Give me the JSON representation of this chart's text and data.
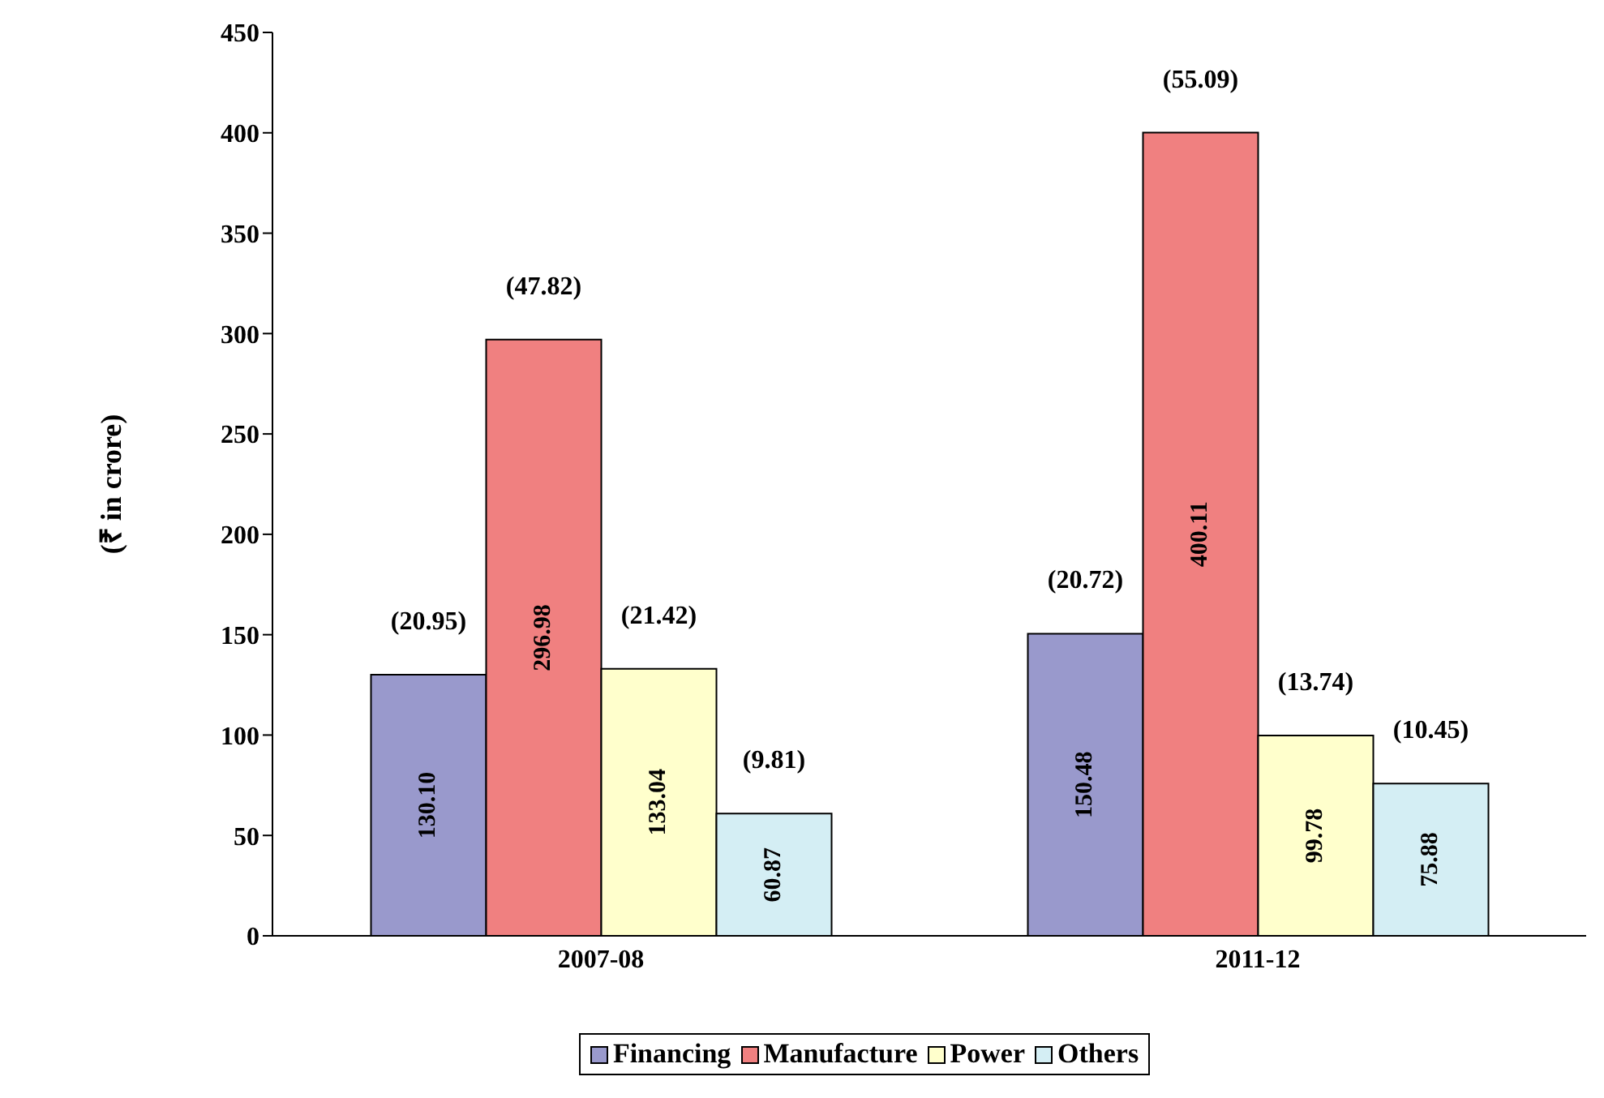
{
  "chart_data": {
    "type": "bar",
    "ylabel": "(₹ in crore)",
    "categories": [
      "2007-08",
      "2011-12"
    ],
    "series": [
      {
        "name": "Financing",
        "color": "#9999cc",
        "values": [
          130.1,
          150.48
        ],
        "value_labels": [
          "130.10",
          "150.48"
        ]
      },
      {
        "name": "Manufacture",
        "color": "#f08080",
        "values": [
          296.98,
          400.11
        ],
        "value_labels": [
          "296.98",
          "400.11"
        ]
      },
      {
        "name": "Power",
        "color": "#ffffcc",
        "values": [
          133.04,
          99.78
        ],
        "value_labels": [
          "133.04",
          "99.78"
        ]
      },
      {
        "name": "Others",
        "color": "#d4eef4",
        "values": [
          60.87,
          75.88
        ],
        "value_labels": [
          "60.87",
          "75.88"
        ]
      }
    ],
    "annotations": [
      "(20.95)",
      "(47.82)",
      "(21.42)",
      "(9.81)",
      "(20.72)",
      "(55.09)",
      "(13.74)",
      "(10.45)"
    ],
    "data_labels": true,
    "ylim": [
      0,
      450
    ],
    "yticks": [
      0,
      50,
      100,
      150,
      200,
      250,
      300,
      350,
      400,
      450
    ],
    "legend": "bottom",
    "grid": false
  }
}
